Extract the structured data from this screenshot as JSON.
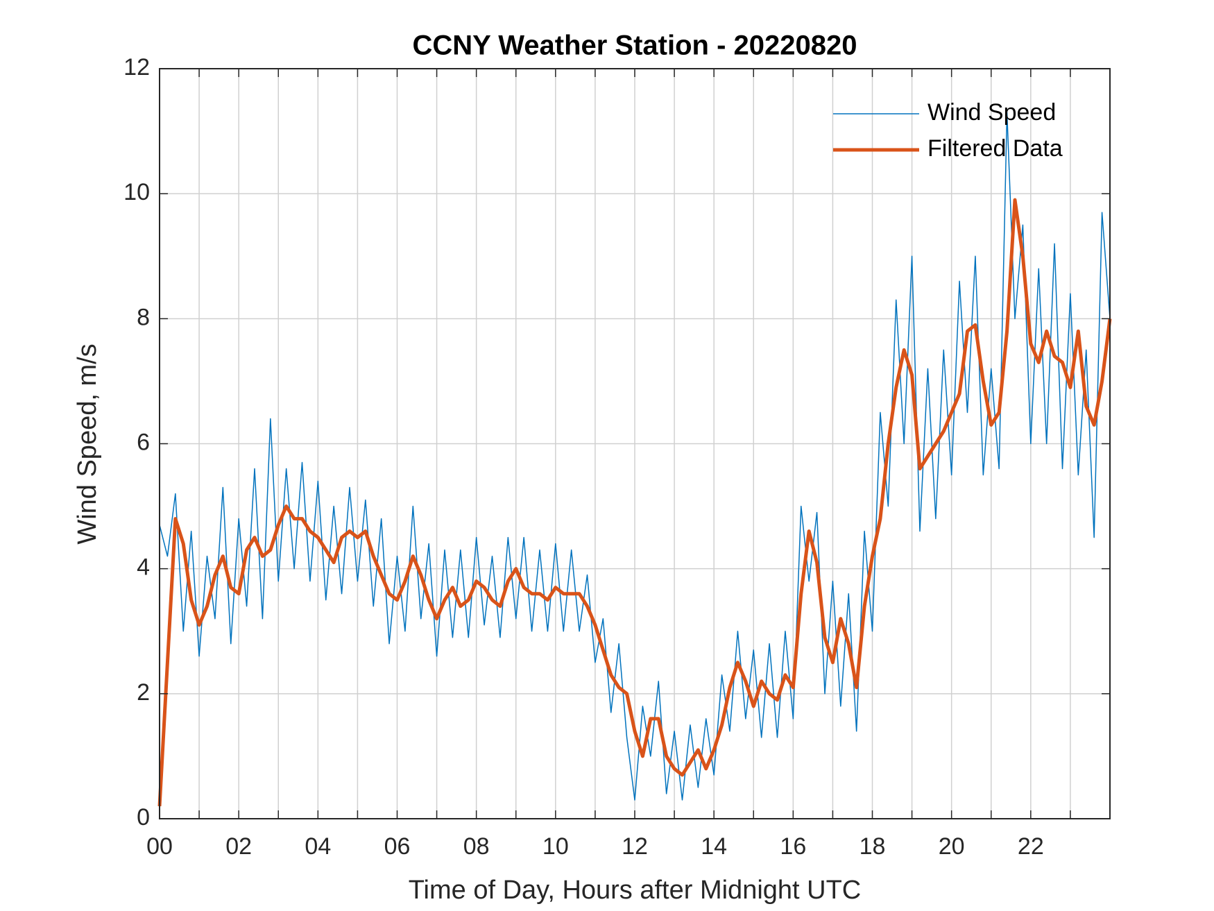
{
  "chart_data": {
    "type": "line",
    "title": "CCNY Weather Station - 20220820",
    "xlabel": "Time of Day, Hours after Midnight UTC",
    "ylabel": "Wind Speed, m/s",
    "xlim": [
      0,
      24
    ],
    "ylim": [
      0,
      12
    ],
    "xticks": [
      {
        "value": 0,
        "label": "00"
      },
      {
        "value": 2,
        "label": "02"
      },
      {
        "value": 4,
        "label": "04"
      },
      {
        "value": 6,
        "label": "06"
      },
      {
        "value": 8,
        "label": "08"
      },
      {
        "value": 10,
        "label": "10"
      },
      {
        "value": 12,
        "label": "12"
      },
      {
        "value": 14,
        "label": "14"
      },
      {
        "value": 16,
        "label": "16"
      },
      {
        "value": 18,
        "label": "18"
      },
      {
        "value": 20,
        "label": "20"
      },
      {
        "value": 22,
        "label": "22"
      }
    ],
    "xminorticks": [
      1,
      3,
      5,
      7,
      9,
      11,
      13,
      15,
      17,
      19,
      21,
      23
    ],
    "yticks": [
      0,
      2,
      4,
      6,
      8,
      10,
      12
    ],
    "grid": true,
    "legend": "upper-right",
    "x": [
      0,
      0.2,
      0.4,
      0.6,
      0.8,
      1,
      1.2,
      1.4,
      1.6,
      1.8,
      2,
      2.2,
      2.4,
      2.6,
      2.8,
      3,
      3.2,
      3.4,
      3.6,
      3.8,
      4,
      4.2,
      4.4,
      4.6,
      4.8,
      5,
      5.2,
      5.4,
      5.6,
      5.8,
      6,
      6.2,
      6.4,
      6.6,
      6.8,
      7,
      7.2,
      7.4,
      7.6,
      7.8,
      8,
      8.2,
      8.4,
      8.6,
      8.8,
      9,
      9.2,
      9.4,
      9.6,
      9.8,
      10,
      10.2,
      10.4,
      10.6,
      10.8,
      11,
      11.2,
      11.4,
      11.6,
      11.8,
      12,
      12.2,
      12.4,
      12.6,
      12.8,
      13,
      13.2,
      13.4,
      13.6,
      13.8,
      14,
      14.2,
      14.4,
      14.6,
      14.8,
      15,
      15.2,
      15.4,
      15.6,
      15.8,
      16,
      16.2,
      16.4,
      16.6,
      16.8,
      17,
      17.2,
      17.4,
      17.6,
      17.8,
      18,
      18.2,
      18.4,
      18.6,
      18.8,
      19,
      19.2,
      19.4,
      19.6,
      19.8,
      20,
      20.2,
      20.4,
      20.6,
      20.8,
      21,
      21.2,
      21.4,
      21.6,
      21.8,
      22,
      22.2,
      22.4,
      22.6,
      22.8,
      23,
      23.2,
      23.4,
      23.6,
      23.8,
      24
    ],
    "series": [
      {
        "name": "Wind Speed",
        "color": "#0072bd",
        "width": 1.5,
        "values": [
          4.7,
          4.2,
          5.2,
          3.0,
          4.6,
          2.6,
          4.2,
          3.2,
          5.3,
          2.8,
          4.8,
          3.4,
          5.6,
          3.2,
          6.4,
          3.8,
          5.6,
          4.0,
          5.7,
          3.8,
          5.4,
          3.5,
          5.0,
          3.6,
          5.3,
          3.8,
          5.1,
          3.4,
          4.8,
          2.8,
          4.2,
          3.0,
          5.0,
          3.2,
          4.4,
          2.6,
          4.3,
          2.9,
          4.3,
          2.9,
          4.5,
          3.1,
          4.2,
          2.9,
          4.5,
          3.2,
          4.5,
          3.0,
          4.3,
          3.0,
          4.4,
          3.0,
          4.3,
          3.0,
          3.9,
          2.5,
          3.2,
          1.7,
          2.8,
          1.3,
          0.3,
          1.8,
          1.0,
          2.2,
          0.4,
          1.4,
          0.3,
          1.5,
          0.5,
          1.6,
          0.7,
          2.3,
          1.4,
          3.0,
          1.6,
          2.7,
          1.3,
          2.8,
          1.3,
          3.0,
          1.6,
          5.0,
          3.8,
          4.9,
          2.0,
          3.8,
          1.8,
          3.6,
          1.4,
          4.6,
          3.0,
          6.5,
          5.0,
          8.3,
          6.0,
          9.0,
          4.6,
          7.2,
          4.8,
          7.5,
          5.5,
          8.6,
          6.5,
          9.0,
          5.5,
          7.2,
          5.6,
          11.3,
          8.0,
          9.5,
          6.0,
          8.8,
          6.0,
          9.2,
          5.6,
          8.4,
          5.5,
          7.5,
          4.5,
          9.7,
          8.0
        ]
      },
      {
        "name": "Filtered Data",
        "color": "#d95319",
        "width": 5,
        "values": [
          0.2,
          2.5,
          4.8,
          4.4,
          3.5,
          3.1,
          3.4,
          3.9,
          4.2,
          3.7,
          3.6,
          4.3,
          4.5,
          4.2,
          4.3,
          4.7,
          5.0,
          4.8,
          4.8,
          4.6,
          4.5,
          4.3,
          4.1,
          4.5,
          4.6,
          4.5,
          4.6,
          4.2,
          3.9,
          3.6,
          3.5,
          3.8,
          4.2,
          3.9,
          3.5,
          3.2,
          3.5,
          3.7,
          3.4,
          3.5,
          3.8,
          3.7,
          3.5,
          3.4,
          3.8,
          4.0,
          3.7,
          3.6,
          3.6,
          3.5,
          3.7,
          3.6,
          3.6,
          3.6,
          3.4,
          3.1,
          2.7,
          2.3,
          2.1,
          2.0,
          1.4,
          1.0,
          1.6,
          1.6,
          1.0,
          0.8,
          0.7,
          0.9,
          1.1,
          0.8,
          1.1,
          1.5,
          2.1,
          2.5,
          2.2,
          1.8,
          2.2,
          2.0,
          1.9,
          2.3,
          2.1,
          3.6,
          4.6,
          4.1,
          2.9,
          2.5,
          3.2,
          2.8,
          2.1,
          3.4,
          4.2,
          4.8,
          6.0,
          6.9,
          7.5,
          7.1,
          5.6,
          5.8,
          6.0,
          6.2,
          6.5,
          6.8,
          7.8,
          7.9,
          7.0,
          6.3,
          6.5,
          7.8,
          9.9,
          9.0,
          7.6,
          7.3,
          7.8,
          7.4,
          7.3,
          6.9,
          7.8,
          6.6,
          6.3,
          7.0,
          8.0
        ]
      }
    ]
  }
}
